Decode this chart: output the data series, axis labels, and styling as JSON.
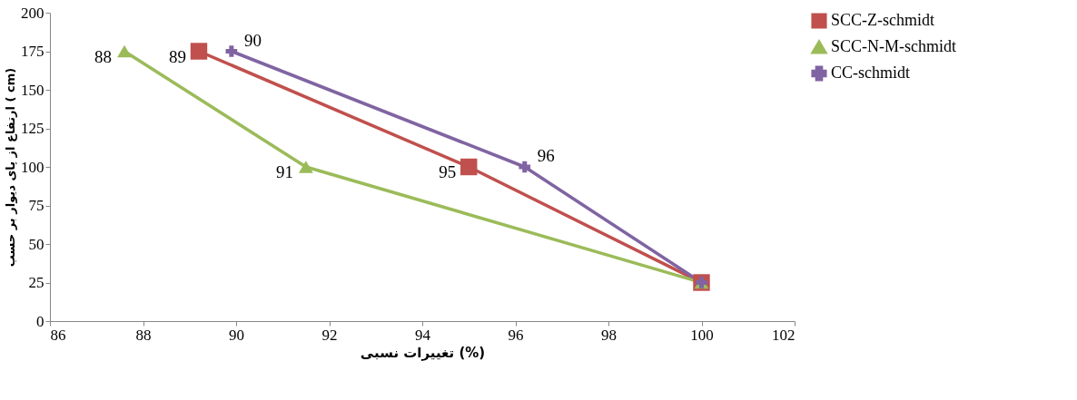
{
  "chart_data": {
    "type": "line",
    "xlabel": "تغییرات نسبی (%)",
    "ylabel": "ارتفاع از پای دیوار بر حسب ( cm)",
    "xlim": [
      86,
      102
    ],
    "xticks": [
      86,
      88,
      90,
      92,
      94,
      96,
      98,
      100,
      102
    ],
    "ylim": [
      0,
      200
    ],
    "yticks": [
      0,
      25,
      50,
      75,
      100,
      125,
      150,
      175,
      200
    ],
    "legend": "right",
    "grid": false,
    "series": [
      {
        "name": "SCC-Z-schmidt",
        "color": "#c0504d",
        "marker": "square",
        "x": [
          89.2,
          95,
          100
        ],
        "values": [
          175,
          100,
          25
        ]
      },
      {
        "name": "SCC-N-M-schmidt",
        "color": "#9bbb59",
        "marker": "triangle",
        "x": [
          87.6,
          91.5,
          100
        ],
        "values": [
          175,
          100,
          25
        ]
      },
      {
        "name": "CC-schmidt",
        "color": "#8064a2",
        "marker": "cross",
        "x": [
          89.9,
          96.2,
          100
        ],
        "values": [
          175,
          100,
          25
        ]
      }
    ],
    "annotations": [
      {
        "text": "89",
        "x": 89.2,
        "y": 175
      },
      {
        "text": "95",
        "x": 95,
        "y": 100
      },
      {
        "text": "88",
        "x": 87.6,
        "y": 175
      },
      {
        "text": "91",
        "x": 91.5,
        "y": 100
      },
      {
        "text": "90",
        "x": 89.9,
        "y": 175
      },
      {
        "text": "96",
        "x": 96.2,
        "y": 100
      }
    ]
  }
}
